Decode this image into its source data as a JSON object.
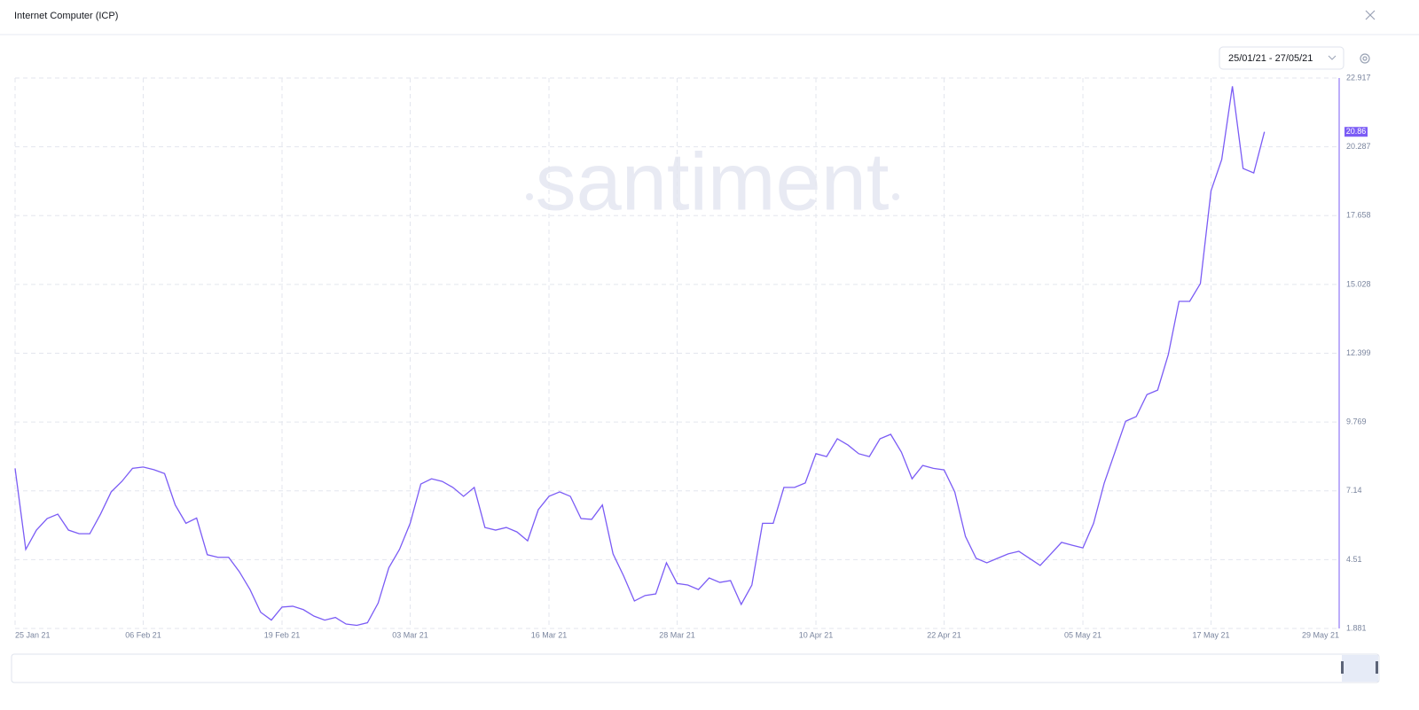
{
  "chart_data": {
    "type": "line",
    "title": "Internet Computer (ICP)",
    "date_range": "25/01/21 - 27/05/21",
    "watermark": "santiment",
    "x": [
      "2021-01-25",
      "2021-01-26",
      "2021-01-27",
      "2021-01-28",
      "2021-01-29",
      "2021-01-30",
      "2021-01-31",
      "2021-02-01",
      "2021-02-02",
      "2021-02-03",
      "2021-02-04",
      "2021-02-05",
      "2021-02-06",
      "2021-02-07",
      "2021-02-08",
      "2021-02-09",
      "2021-02-10",
      "2021-02-11",
      "2021-02-12",
      "2021-02-13",
      "2021-02-14",
      "2021-02-15",
      "2021-02-16",
      "2021-02-17",
      "2021-02-18",
      "2021-02-19",
      "2021-02-20",
      "2021-02-21",
      "2021-02-22",
      "2021-02-23",
      "2021-02-24",
      "2021-02-25",
      "2021-02-26",
      "2021-02-27",
      "2021-02-28",
      "2021-03-01",
      "2021-03-02",
      "2021-03-03",
      "2021-03-04",
      "2021-03-05",
      "2021-03-06",
      "2021-03-07",
      "2021-03-08",
      "2021-03-09",
      "2021-03-10",
      "2021-03-11",
      "2021-03-12",
      "2021-03-13",
      "2021-03-14",
      "2021-03-15",
      "2021-03-16",
      "2021-03-17",
      "2021-03-18",
      "2021-03-19",
      "2021-03-20",
      "2021-03-21",
      "2021-03-22",
      "2021-03-23",
      "2021-03-24",
      "2021-03-25",
      "2021-03-26",
      "2021-03-27",
      "2021-03-28",
      "2021-03-29",
      "2021-03-30",
      "2021-03-31",
      "2021-04-01",
      "2021-04-02",
      "2021-04-03",
      "2021-04-04",
      "2021-04-05",
      "2021-04-06",
      "2021-04-07",
      "2021-04-08",
      "2021-04-09",
      "2021-04-10",
      "2021-04-11",
      "2021-04-12",
      "2021-04-13",
      "2021-04-14",
      "2021-04-15",
      "2021-04-16",
      "2021-04-17",
      "2021-04-18",
      "2021-04-19",
      "2021-04-20",
      "2021-04-21",
      "2021-04-22",
      "2021-04-23",
      "2021-04-24",
      "2021-04-25",
      "2021-04-26",
      "2021-04-27",
      "2021-04-28",
      "2021-04-29",
      "2021-04-30",
      "2021-05-01",
      "2021-05-02",
      "2021-05-03",
      "2021-05-04",
      "2021-05-05",
      "2021-05-06",
      "2021-05-07",
      "2021-05-08",
      "2021-05-09",
      "2021-05-10",
      "2021-05-11",
      "2021-05-12",
      "2021-05-13",
      "2021-05-14",
      "2021-05-15",
      "2021-05-16",
      "2021-05-17",
      "2021-05-18",
      "2021-05-19",
      "2021-05-20",
      "2021-05-21",
      "2021-05-22"
    ],
    "series": [
      {
        "color": "#7b5cf5",
        "values": [
          8.0,
          4.9,
          5.64,
          6.08,
          6.25,
          5.64,
          5.5,
          5.5,
          6.25,
          7.1,
          7.5,
          8.0,
          8.05,
          7.95,
          7.8,
          6.6,
          5.9,
          6.1,
          4.7,
          4.6,
          4.6,
          4.05,
          3.37,
          2.5,
          2.2,
          2.7,
          2.73,
          2.6,
          2.35,
          2.2,
          2.3,
          2.05,
          2.0,
          2.1,
          2.85,
          4.2,
          4.9,
          5.9,
          7.4,
          7.6,
          7.5,
          7.27,
          6.93,
          7.27,
          5.74,
          5.64,
          5.74,
          5.57,
          5.23,
          6.42,
          6.93,
          7.1,
          6.93,
          6.08,
          6.05,
          6.6,
          4.73,
          3.88,
          2.93,
          3.14,
          3.2,
          4.39,
          3.6,
          3.54,
          3.37,
          3.81,
          3.64,
          3.71,
          2.8,
          3.54,
          5.9,
          5.9,
          7.27,
          7.27,
          7.44,
          8.56,
          8.45,
          9.13,
          8.89,
          8.56,
          8.45,
          9.13,
          9.3,
          8.62,
          7.6,
          8.11,
          8.0,
          7.94,
          7.1,
          5.4,
          4.56,
          4.39,
          4.56,
          4.73,
          4.83,
          4.56,
          4.29,
          4.73,
          5.17,
          5.06,
          4.96,
          5.9,
          7.44,
          8.62,
          9.8,
          9.98,
          10.82,
          10.99,
          12.35,
          14.38,
          14.38,
          15.06,
          18.61,
          19.8,
          22.6,
          19.46,
          19.29,
          20.86
        ]
      }
    ],
    "xlim": [
      "2021-01-25",
      "2021-05-29"
    ],
    "xticks": [
      {
        "value": "2021-01-25",
        "label": "25 Jan 21"
      },
      {
        "value": "2021-02-06",
        "label": "06 Feb 21"
      },
      {
        "value": "2021-02-19",
        "label": "19 Feb 21"
      },
      {
        "value": "2021-03-03",
        "label": "03 Mar 21"
      },
      {
        "value": "2021-03-16",
        "label": "16 Mar 21"
      },
      {
        "value": "2021-03-28",
        "label": "28 Mar 21"
      },
      {
        "value": "2021-04-10",
        "label": "10 Apr 21"
      },
      {
        "value": "2021-04-22",
        "label": "22 Apr 21"
      },
      {
        "value": "2021-05-05",
        "label": "05 May 21"
      },
      {
        "value": "2021-05-17",
        "label": "17 May 21"
      },
      {
        "value": "2021-05-29",
        "label": "29 May 21"
      }
    ],
    "ylim": [
      1.881,
      22.917
    ],
    "yticks": [
      1.881,
      4.51,
      7.14,
      9.769,
      12.399,
      15.028,
      17.658,
      20.287,
      22.917
    ],
    "grid": true
  }
}
